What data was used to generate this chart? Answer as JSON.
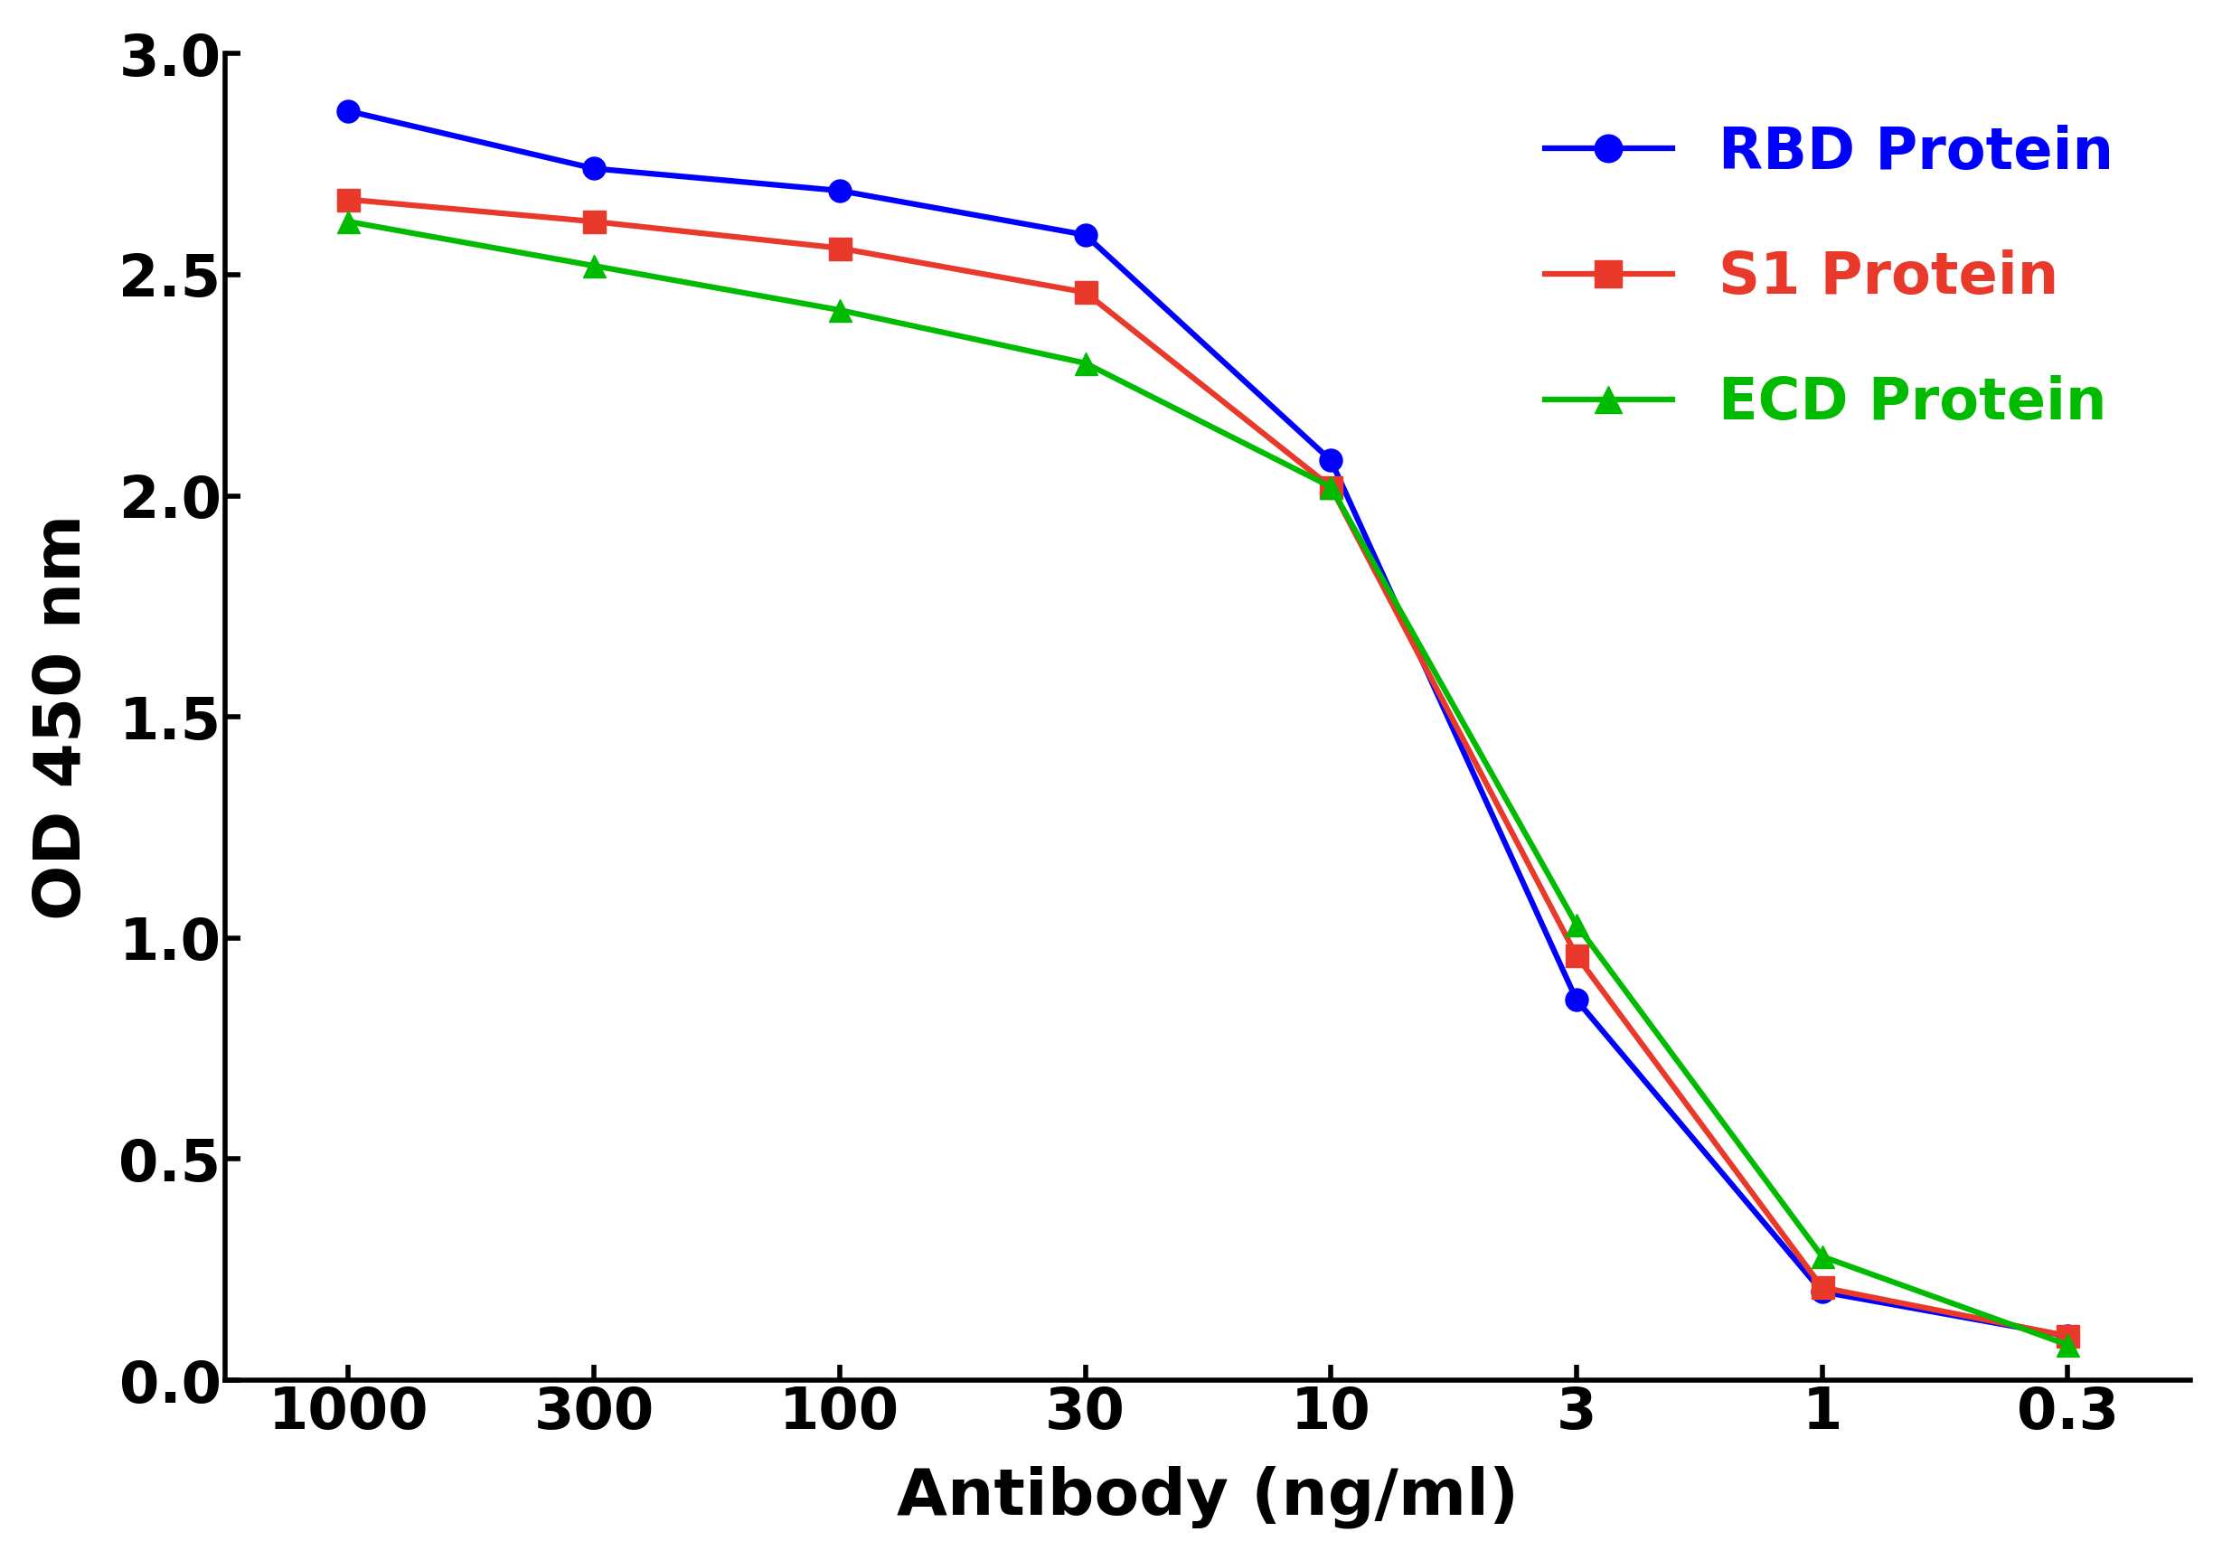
{
  "x_labels": [
    "1000",
    "300",
    "100",
    "30",
    "10",
    "3",
    "1",
    "0.3"
  ],
  "rbd_y": [
    2.87,
    2.74,
    2.69,
    2.59,
    2.08,
    0.86,
    0.2,
    0.1
  ],
  "s1_y": [
    2.67,
    2.62,
    2.56,
    2.46,
    2.02,
    0.96,
    0.21,
    0.1
  ],
  "ecd_y": [
    2.62,
    2.52,
    2.42,
    2.3,
    2.02,
    1.03,
    0.28,
    0.08
  ],
  "rbd_color": "#0000ff",
  "s1_color": "#e8392a",
  "ecd_color": "#00bb00",
  "rbd_label": "RBD Protein",
  "s1_label": "S1 Protein",
  "ecd_label": "ECD Protein",
  "xlabel": "Antibody (ng/ml)",
  "ylabel": "OD 450 nm",
  "ylim": [
    0.0,
    3.0
  ],
  "yticks": [
    0.0,
    0.5,
    1.0,
    1.5,
    2.0,
    2.5,
    3.0
  ],
  "line_width": 4.5,
  "marker_size": 18,
  "axis_linewidth": 4.0,
  "tick_fontsize": 46,
  "label_fontsize": 52,
  "legend_fontsize": 46,
  "legend_marker_size": 22,
  "background_color": "#ffffff",
  "tick_color": "#000000",
  "label_color": "#000000"
}
